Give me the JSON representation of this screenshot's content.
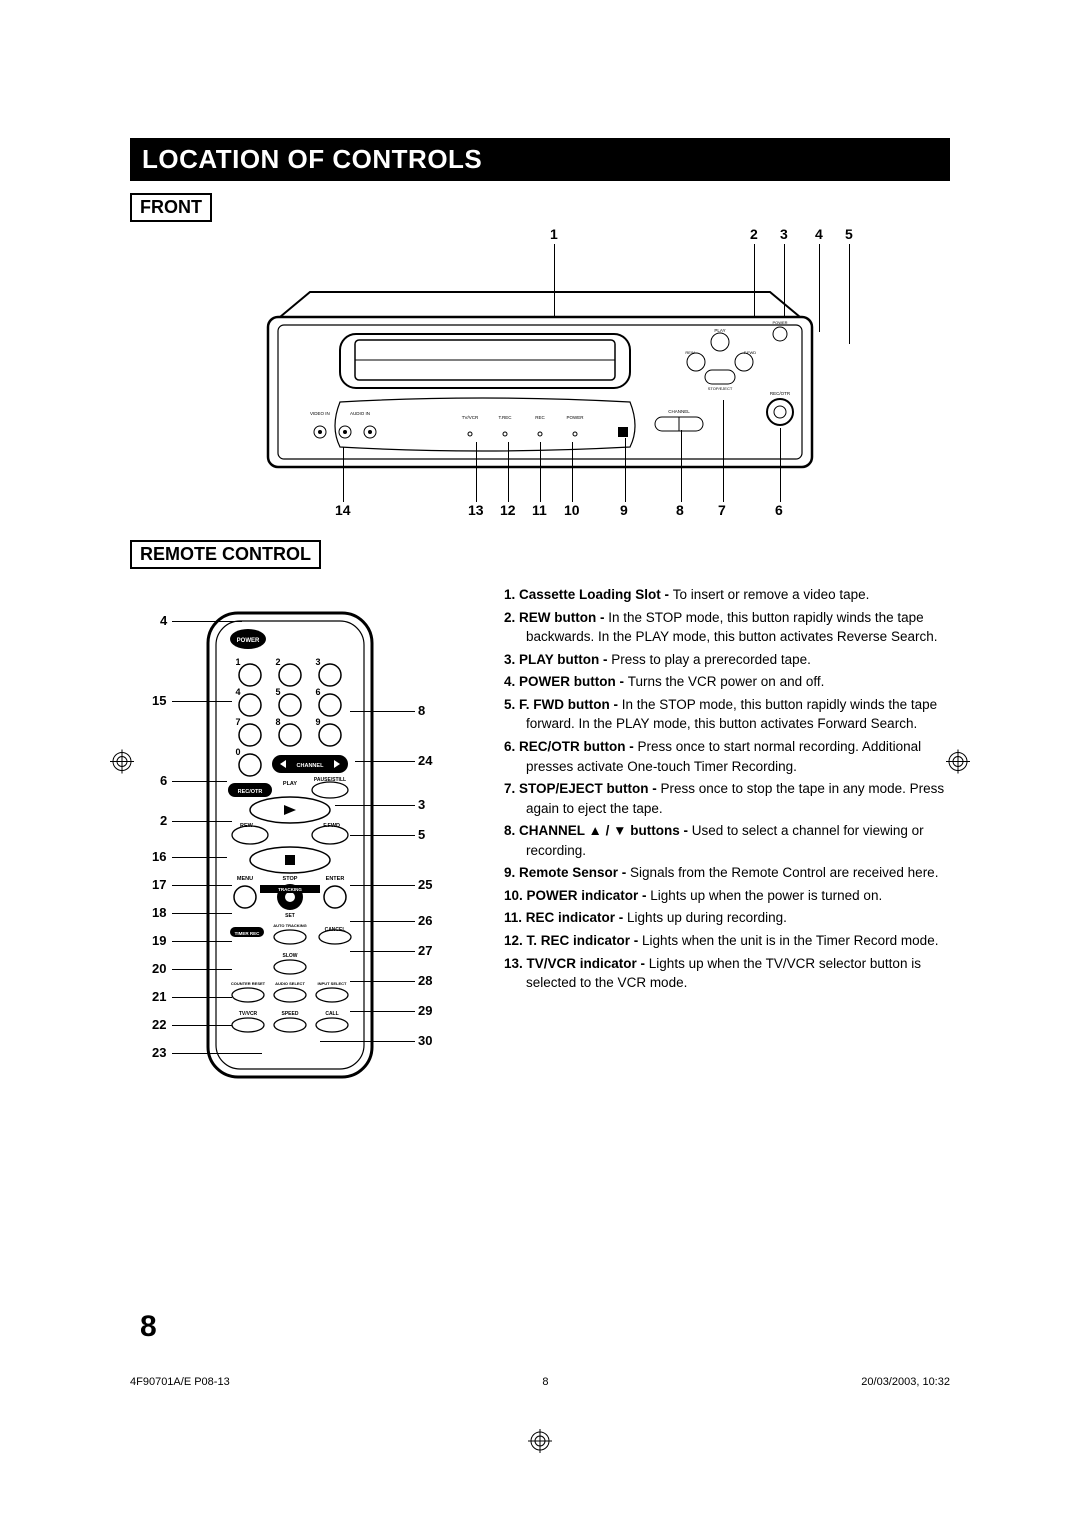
{
  "colorbars": {
    "gray": [
      "#000000",
      "#000000",
      "#1a1a1a",
      "#404040",
      "#666666",
      "#8c8c8c",
      "#b3b3b3",
      "#d9d9d9",
      "#f2f2f2",
      "#ffffff"
    ],
    "rgb": [
      "#00aeef",
      "#ec008c",
      "#fff200",
      "#000000",
      "#ed1c24",
      "#00a651",
      "#0072bc",
      "#92278f",
      "#f7941d",
      "#f49ac1",
      "#8dc63f"
    ]
  },
  "title": "LOCATION OF CONTROLS",
  "section_front": "FRONT",
  "section_remote": "REMOTE CONTROL",
  "front": {
    "top_callouts": {
      "1": "1",
      "2": "2",
      "3": "3",
      "4": "4",
      "5": "5"
    },
    "bottom_callouts": {
      "14": "14",
      "13": "13",
      "12": "12",
      "11": "11",
      "10": "10",
      "9": "9",
      "8": "8",
      "7": "7",
      "6": "6"
    },
    "panel_text": {
      "videoin": "VIDEO IN",
      "audioin": "AUDIO IN",
      "tvvcr": "TV/VCR",
      "trec": "T.REC",
      "rec": "REC",
      "power": "POWER",
      "channel": "CHANNEL",
      "recotr": "REC/OTR",
      "rew": "REW",
      "ffwd": "F.FWD",
      "play": "PLAY",
      "stop": "STOP/EJECT",
      "power2": "POWER"
    }
  },
  "remote": {
    "left_callouts": [
      "4",
      "15",
      "6",
      "2",
      "16",
      "17",
      "18",
      "19",
      "20",
      "21",
      "22",
      "23"
    ],
    "right_callouts": [
      "8",
      "24",
      "3",
      "5",
      "25",
      "26",
      "27",
      "28",
      "29",
      "30"
    ],
    "labels": {
      "power": "POWER",
      "channel": "CHANNEL",
      "recotr": "REC/OTR",
      "play": "PLAY",
      "pause": "PAUSE/STILL",
      "rew": "REW",
      "ffwd": "F.FWD",
      "menu": "MENU",
      "stop": "STOP",
      "enter": "ENTER",
      "tracking": "TRACKING",
      "set": "SET",
      "timerrec": "TIMER REC",
      "autotrack": "AUTO TRACKING",
      "cancel": "CANCEL",
      "slow": "SLOW",
      "counter": "COUNTER RESET",
      "audio": "AUDIO SELECT",
      "input": "INPUT SELECT",
      "tvvcr": "TV/VCR",
      "speed": "SPEED",
      "call": "CALL"
    },
    "digits": {
      "d1": "1",
      "d2": "2",
      "d3": "3",
      "d4": "4",
      "d5": "5",
      "d6": "6",
      "d7": "7",
      "d8": "8",
      "d9": "9",
      "d0": "0"
    }
  },
  "descriptions": [
    {
      "n": "1.",
      "t": "Cassette Loading Slot - ",
      "d": "To insert or remove a video tape."
    },
    {
      "n": "2.",
      "t": "REW button - ",
      "d": "In the STOP mode, this button rapidly winds the tape backwards. In the PLAY mode, this button activates Reverse Search."
    },
    {
      "n": "3.",
      "t": "PLAY button - ",
      "d": "Press to play a prerecorded tape."
    },
    {
      "n": "4.",
      "t": "POWER button - ",
      "d": "Turns the VCR power on and off."
    },
    {
      "n": "5.",
      "t": "F. FWD button - ",
      "d": "In the STOP mode, this button rapidly winds the tape forward. In the PLAY mode, this button activates Forward Search."
    },
    {
      "n": "6.",
      "t": "REC/OTR button - ",
      "d": "Press once to start normal recording. Additional presses activate One-touch Timer Recording."
    },
    {
      "n": "7.",
      "t": "STOP/EJECT button - ",
      "d": "Press once to stop the tape in any mode. Press again to eject the tape."
    },
    {
      "n": "8.",
      "t": "CHANNEL ▲ / ▼ buttons - ",
      "d": "Used to select a channel for viewing or recording."
    },
    {
      "n": "9.",
      "t": "Remote Sensor - ",
      "d": "Signals from the Remote Control are received here."
    },
    {
      "n": "10.",
      "t": "POWER indicator - ",
      "d": "Lights up when the power is turned on."
    },
    {
      "n": "11.",
      "t": "REC indicator - ",
      "d": "Lights up during recording."
    },
    {
      "n": "12.",
      "t": "T. REC indicator - ",
      "d": "Lights when the unit is in the Timer Record mode."
    },
    {
      "n": "13.",
      "t": "TV/VCR indicator - ",
      "d": "Lights up when the TV/VCR selector button is selected to the VCR mode."
    }
  ],
  "pagenum": "8",
  "footer": {
    "left": "4F90701A/E P08-13",
    "mid": "8",
    "right": "20/03/2003, 10:32"
  }
}
